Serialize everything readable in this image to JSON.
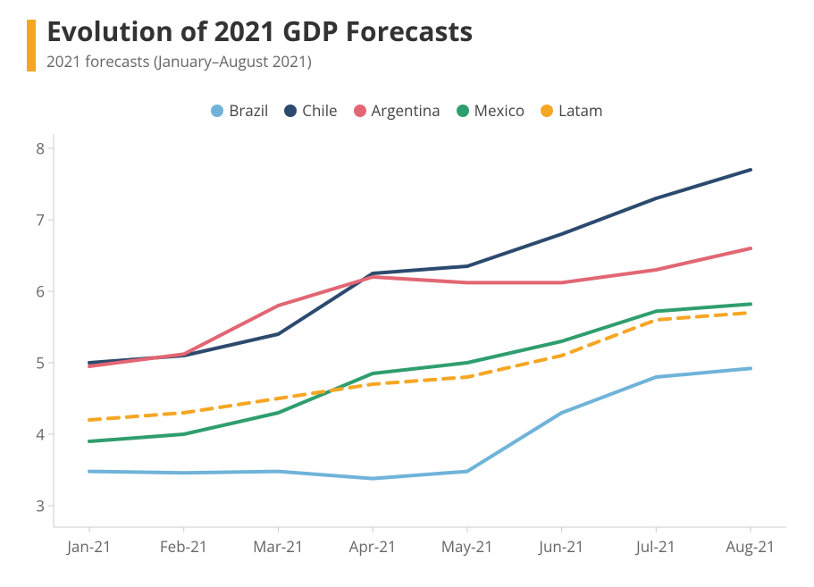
{
  "title": "Evolution of 2021 GDP Forecasts",
  "subtitle": "2021 forecasts (January–August 2021)",
  "title_bar_color": "#f5a623",
  "title_color": "#333333",
  "subtitle_color": "#666666",
  "title_fontsize": 30,
  "subtitle_fontsize": 17,
  "background_color": "#ffffff",
  "axis_color": "#cccccc",
  "label_color": "#666666",
  "label_fontsize": 17,
  "chart": {
    "type": "line",
    "x_categories": [
      "Jan-21",
      "Feb-21",
      "Mar-21",
      "Apr-21",
      "May-21",
      "Jun-21",
      "Jul-21",
      "Aug-21"
    ],
    "ylim": [
      2.7,
      8.2
    ],
    "yticks": [
      3,
      4,
      5,
      6,
      7,
      8
    ],
    "line_width": 4,
    "dash_pattern": "12,9",
    "series": [
      {
        "name": "Brazil",
        "color": "#6fb3d9",
        "dashed": false,
        "values": [
          3.48,
          3.46,
          3.48,
          3.38,
          3.48,
          4.3,
          4.8,
          4.92
        ]
      },
      {
        "name": "Chile",
        "color": "#2c4a6e",
        "dashed": false,
        "values": [
          5.0,
          5.1,
          5.4,
          6.25,
          6.35,
          6.8,
          7.3,
          7.7
        ]
      },
      {
        "name": "Argentina",
        "color": "#e26673",
        "dashed": false,
        "values": [
          4.95,
          5.12,
          5.8,
          6.2,
          6.12,
          6.12,
          6.3,
          6.6
        ]
      },
      {
        "name": "Mexico",
        "color": "#2f9e6e",
        "dashed": false,
        "values": [
          3.9,
          4.0,
          4.3,
          4.85,
          5.0,
          5.3,
          5.72,
          5.82
        ]
      },
      {
        "name": "Latam",
        "color": "#f5a623",
        "dashed": true,
        "values": [
          4.2,
          4.3,
          4.5,
          4.7,
          4.8,
          5.1,
          5.6,
          5.7
        ]
      }
    ]
  }
}
